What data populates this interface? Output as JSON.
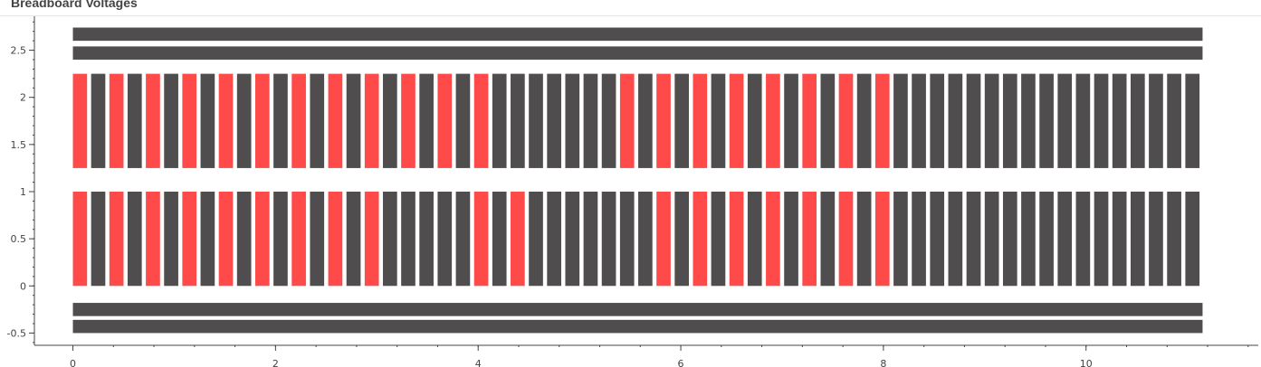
{
  "chart_data": {
    "type": "bar",
    "title": "Breadboard Voltages",
    "xlabel": "",
    "ylabel": "",
    "xlim": [
      -0.38,
      11.7
    ],
    "ylim": [
      -0.63,
      2.86
    ],
    "grid": false,
    "legend": "none",
    "xticks": [
      0,
      2,
      4,
      6,
      8,
      10
    ],
    "xtick_labels": [
      "0",
      "2",
      "4",
      "6",
      "8",
      "10"
    ],
    "yticks": [
      -0.5,
      0,
      0.5,
      1,
      1.5,
      2,
      2.5
    ],
    "ytick_labels": [
      "-0.5",
      "0",
      "0.5",
      "1",
      "1.5",
      "2",
      "2.5"
    ],
    "colors": {
      "off": "#4f4d4d",
      "on": "#ff4a4a",
      "axis": "#444444"
    },
    "strip_spacing": 0.18,
    "strip_width": 0.14,
    "strip_count": 62,
    "rails": [
      {
        "x0": 0,
        "x1": 11.15,
        "y0": 2.6,
        "y1": 2.74
      },
      {
        "x0": 0,
        "x1": 11.15,
        "y0": 2.4,
        "y1": 2.54
      },
      {
        "x0": 0,
        "x1": 11.15,
        "y0": -0.32,
        "y1": -0.18
      },
      {
        "x0": 0,
        "x1": 11.15,
        "y0": -0.5,
        "y1": -0.36
      }
    ],
    "series": [
      {
        "y0": 1.25,
        "y1": 2.25,
        "states": [
          1,
          0,
          1,
          0,
          1,
          0,
          1,
          0,
          1,
          0,
          1,
          0,
          1,
          0,
          1,
          0,
          1,
          0,
          1,
          0,
          1,
          0,
          1,
          0,
          0,
          0,
          0,
          0,
          0,
          0,
          1,
          0,
          1,
          0,
          1,
          0,
          1,
          0,
          1,
          0,
          1,
          0,
          1,
          0,
          1,
          0,
          0,
          0,
          0,
          0,
          0,
          0,
          0,
          0,
          0,
          0,
          0,
          0,
          0,
          0,
          0,
          0
        ]
      },
      {
        "y0": 0,
        "y1": 1,
        "states": [
          1,
          0,
          1,
          0,
          1,
          0,
          1,
          0,
          1,
          0,
          1,
          0,
          1,
          0,
          1,
          0,
          1,
          0,
          0,
          0,
          0,
          0,
          1,
          0,
          1,
          0,
          0,
          0,
          0,
          0,
          0,
          0,
          1,
          0,
          1,
          0,
          1,
          0,
          1,
          0,
          1,
          0,
          1,
          0,
          1,
          0,
          0,
          0,
          0,
          0,
          0,
          0,
          0,
          0,
          0,
          0,
          0,
          0,
          0,
          0,
          0,
          0
        ]
      }
    ]
  }
}
